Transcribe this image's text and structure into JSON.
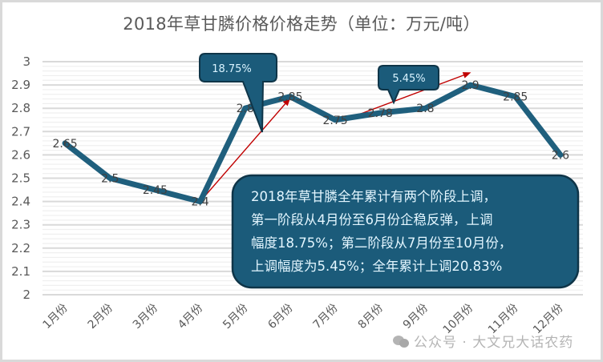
{
  "chart_data": {
    "type": "line",
    "title": "2018年草甘膦价格价格走势（单位：万元/吨）",
    "xlabel": "",
    "ylabel": "",
    "categories": [
      "1月份",
      "2月份",
      "3月份",
      "4月份",
      "5月份",
      "6月份",
      "7月份",
      "8月份",
      "9月份",
      "10月份",
      "11月份",
      "12月份"
    ],
    "series": [
      {
        "name": "草甘膦价格",
        "values": [
          2.65,
          2.5,
          2.45,
          2.4,
          2.8,
          2.85,
          2.75,
          2.78,
          2.8,
          2.9,
          2.85,
          2.6
        ],
        "labels": [
          "2.65",
          "2.5",
          "2.45",
          "2.4",
          "2.8",
          "2.85",
          "2.75",
          "2.78",
          "2.8",
          "2.9",
          "2.85",
          "2.6"
        ],
        "color": "#1f5f7d"
      }
    ],
    "ylim": [
      2,
      3
    ],
    "yticks": [
      "3",
      "2.9",
      "2.8",
      "2.7",
      "2.6",
      "2.5",
      "2.4",
      "2.3",
      "2.2",
      "2.1",
      "2"
    ],
    "grid": true,
    "legend": "none",
    "annotations": [
      {
        "text": "18.75%",
        "type": "callout",
        "arrow_from": "4月份",
        "arrow_to": "6月份"
      },
      {
        "text": "5.45%",
        "type": "callout",
        "arrow_from": "7月份",
        "arrow_to": "10月份"
      }
    ]
  },
  "title": "2018年草甘膦价格价格走势（单位：万元/吨）",
  "callouts": {
    "first": "18.75%",
    "second": "5.45%"
  },
  "summary_box": {
    "lines": [
      "2018年草甘膦全年累计有两个阶段上调，",
      "第一阶段从4月份至6月份企稳反弹，上调",
      "幅度18.75%；第二阶段从7月份至10月份，",
      "上调幅度为5.45%；全年累计上调20.83%"
    ]
  },
  "watermark": "公众号 · 大文兄大话农药",
  "colors": {
    "line": "#1f5f7d",
    "arrow": "#c00000",
    "callout_fill": "#1b5b7a",
    "callout_border": "#0f3548",
    "grid_major": "#d9d9d9",
    "grid_minor": "#efefef"
  }
}
